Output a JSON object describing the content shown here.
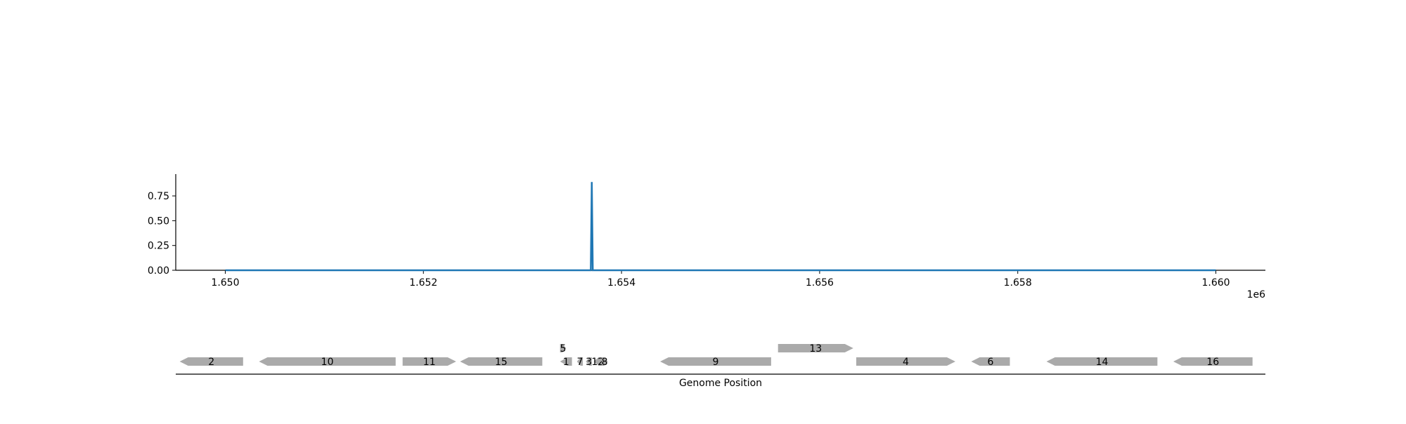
{
  "chart_data": [
    {
      "type": "line",
      "x": [
        1650000,
        1653690,
        1653700,
        1653710,
        1660000
      ],
      "y": [
        0,
        0,
        0.89,
        0,
        0
      ],
      "xlim": [
        1649500,
        1660500
      ],
      "ylim": [
        0,
        0.97
      ],
      "xticks": [
        1650000,
        1652000,
        1654000,
        1656000,
        1658000,
        1660000
      ],
      "xtick_labels": [
        "1.650",
        "1.652",
        "1.654",
        "1.656",
        "1.658",
        "1.660"
      ],
      "yticks": [
        0,
        0.25,
        0.5,
        0.75
      ],
      "ytick_labels": [
        "0.00",
        "0.25",
        "0.50",
        "0.75"
      ],
      "x_offset_label": "1e6",
      "grid": false,
      "color": "#1f77b4"
    },
    {
      "type": "gene-track",
      "xlabel": "Genome Position",
      "xlim": [
        1649500,
        1660500
      ],
      "color": "#aaaaaa",
      "genes": [
        {
          "label": "2",
          "start": 1649540,
          "end": 1650180,
          "strand": "-",
          "row": 0
        },
        {
          "label": "10",
          "start": 1650340,
          "end": 1651720,
          "strand": "-",
          "row": 0
        },
        {
          "label": "11",
          "start": 1651790,
          "end": 1652330,
          "strand": "+",
          "row": 0
        },
        {
          "label": "15",
          "start": 1652370,
          "end": 1653200,
          "strand": "-",
          "row": 0
        },
        {
          "label": "5",
          "start": 1653380,
          "end": 1653440,
          "strand": "+",
          "row": 1
        },
        {
          "label": "1",
          "start": 1653380,
          "end": 1653500,
          "strand": "-",
          "row": 0
        },
        {
          "label": "7",
          "start": 1653550,
          "end": 1653610,
          "strand": "-",
          "row": 0
        },
        {
          "label": "3",
          "start": 1653640,
          "end": 1653700,
          "strand": "-",
          "row": 0
        },
        {
          "label": "12",
          "start": 1653720,
          "end": 1653800,
          "strand": "-",
          "row": 0
        },
        {
          "label": "8",
          "start": 1653800,
          "end": 1653860,
          "strand": "+",
          "row": 0
        },
        {
          "label": "9",
          "start": 1654390,
          "end": 1655510,
          "strand": "-",
          "row": 0
        },
        {
          "label": "13",
          "start": 1655580,
          "end": 1656340,
          "strand": "+",
          "row": 1
        },
        {
          "label": "4",
          "start": 1656370,
          "end": 1657370,
          "strand": "+",
          "row": 0
        },
        {
          "label": "6",
          "start": 1657530,
          "end": 1657920,
          "strand": "-",
          "row": 0
        },
        {
          "label": "14",
          "start": 1658290,
          "end": 1659410,
          "strand": "-",
          "row": 0
        },
        {
          "label": "16",
          "start": 1659570,
          "end": 1660370,
          "strand": "-",
          "row": 0
        }
      ]
    }
  ]
}
